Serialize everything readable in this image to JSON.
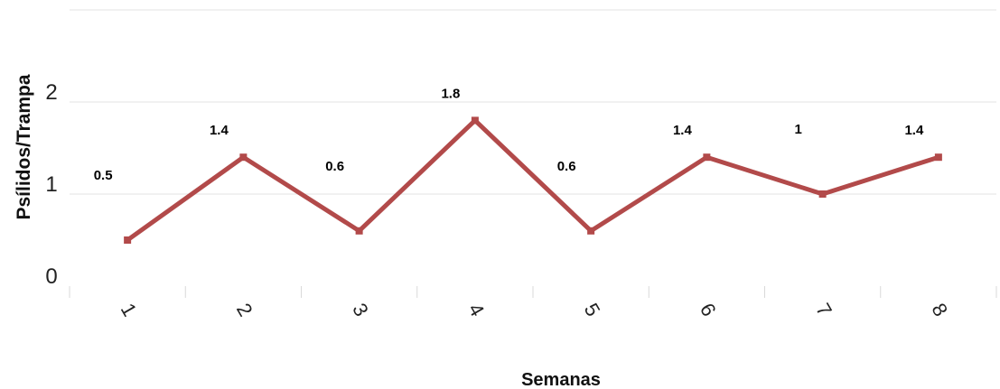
{
  "chart_data": {
    "type": "line",
    "title": "",
    "xlabel": "Semanas",
    "ylabel": "Psílidos/Trampa",
    "categories": [
      "1",
      "2",
      "3",
      "4",
      "5",
      "6",
      "7",
      "8"
    ],
    "y_ticks": [
      "0",
      "1",
      "2"
    ],
    "ylim": [
      0,
      3
    ],
    "grid": true,
    "legend": "none",
    "series": [
      {
        "color": "#b24a4a",
        "values": [
          0.5,
          1.4,
          0.6,
          1.8,
          0.6,
          1.4,
          1.0,
          1.4
        ],
        "labels": [
          "0.5",
          "1.4",
          "0.6",
          "1.8",
          "0.6",
          "1.4",
          "1",
          "1.4"
        ]
      }
    ]
  }
}
